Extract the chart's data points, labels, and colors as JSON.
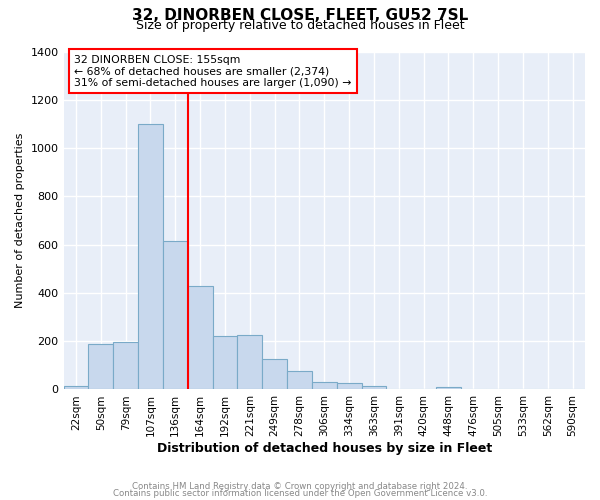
{
  "title": "32, DINORBEN CLOSE, FLEET, GU52 7SL",
  "subtitle": "Size of property relative to detached houses in Fleet",
  "xlabel": "Distribution of detached houses by size in Fleet",
  "ylabel": "Number of detached properties",
  "bar_color": "#c8d8ed",
  "bar_edge_color": "#7aaac8",
  "background_color": "#e8eef8",
  "grid_color": "#ffffff",
  "categories": [
    "22sqm",
    "50sqm",
    "79sqm",
    "107sqm",
    "136sqm",
    "164sqm",
    "192sqm",
    "221sqm",
    "249sqm",
    "278sqm",
    "306sqm",
    "334sqm",
    "363sqm",
    "391sqm",
    "420sqm",
    "448sqm",
    "476sqm",
    "505sqm",
    "533sqm",
    "562sqm",
    "590sqm"
  ],
  "values": [
    15,
    190,
    195,
    1100,
    615,
    430,
    220,
    225,
    125,
    75,
    32,
    27,
    15,
    0,
    0,
    10,
    0,
    0,
    0,
    0,
    0
  ],
  "ylim": [
    0,
    1400
  ],
  "yticks": [
    0,
    200,
    400,
    600,
    800,
    1000,
    1200,
    1400
  ],
  "red_line_index": 5,
  "annotation_line1": "32 DINORBEN CLOSE: 155sqm",
  "annotation_line2": "← 68% of detached houses are smaller (2,374)",
  "annotation_line3": "31% of semi-detached houses are larger (1,090) →",
  "footnote1": "Contains HM Land Registry data © Crown copyright and database right 2024.",
  "footnote2": "Contains public sector information licensed under the Open Government Licence v3.0."
}
